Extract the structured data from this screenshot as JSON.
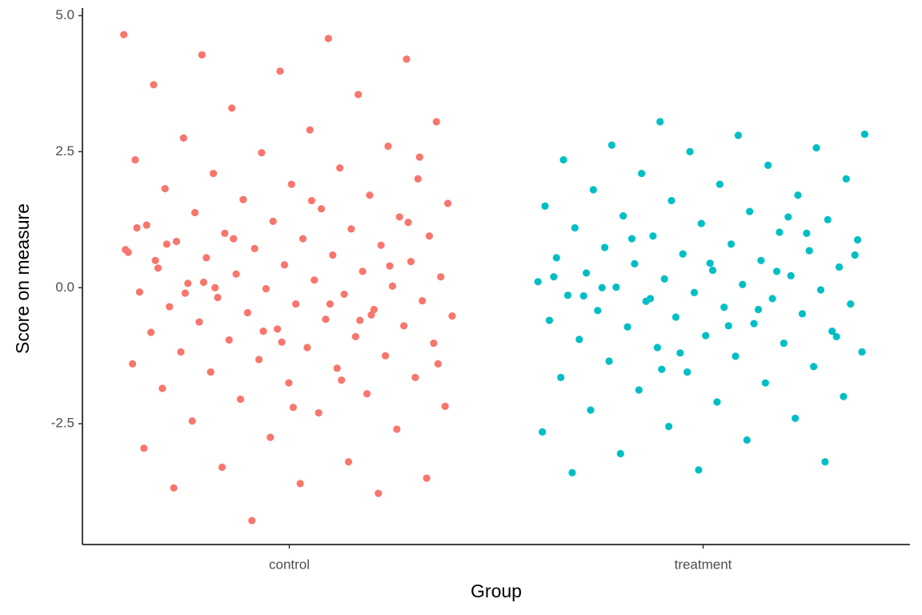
{
  "chart_data": {
    "type": "strip",
    "x_label": "Group",
    "y_label": "Score on measure",
    "categories": [
      "control",
      "treatment"
    ],
    "series": [
      {
        "color": "#f8766d",
        "values": [
          4.65,
          4.58,
          4.28,
          4.2,
          3.98,
          3.73,
          3.55,
          3.3,
          3.05,
          2.9,
          2.75,
          2.6,
          2.48,
          2.35,
          2.2,
          2.1,
          2.0,
          1.9,
          1.82,
          1.7,
          1.62,
          1.55,
          1.45,
          1.38,
          1.3,
          1.22,
          1.15,
          1.08,
          1.0,
          0.95,
          0.9,
          0.85,
          0.78,
          0.72,
          0.65,
          0.6,
          0.55,
          0.48,
          0.42,
          0.36,
          0.3,
          0.25,
          0.2,
          0.14,
          0.08,
          0.03,
          -0.02,
          -0.08,
          -0.12,
          -0.18,
          -0.24,
          -0.3,
          -0.35,
          -0.4,
          -0.46,
          -0.52,
          -0.58,
          -0.63,
          -0.7,
          -0.76,
          -0.82,
          -0.9,
          -0.96,
          -1.02,
          -1.1,
          -1.18,
          -1.25,
          -1.32,
          -1.4,
          -1.48,
          -1.55,
          -1.65,
          -1.75,
          -1.85,
          -1.95,
          -2.05,
          -2.18,
          -2.3,
          -2.45,
          -2.6,
          -2.75,
          -2.95,
          -3.2,
          -3.3,
          -3.5,
          -3.6,
          -3.68,
          -3.78,
          -4.28,
          0.7,
          -0.3,
          0.1,
          1.2,
          -1.0,
          0.5,
          -0.6,
          0.9,
          -1.4,
          1.6,
          -0.1,
          0.4,
          -0.8,
          1.1,
          -1.7,
          0.0,
          2.4,
          -2.2,
          0.8,
          -0.5
        ]
      },
      {
        "color": "#00bfc4",
        "values": [
          3.05,
          2.82,
          2.8,
          2.62,
          2.57,
          2.5,
          2.35,
          2.25,
          2.1,
          2.0,
          1.9,
          1.8,
          1.7,
          1.6,
          1.5,
          1.4,
          1.32,
          1.25,
          1.18,
          1.1,
          1.02,
          0.95,
          0.88,
          0.8,
          0.74,
          0.68,
          0.62,
          0.55,
          0.5,
          0.44,
          0.38,
          0.32,
          0.27,
          0.22,
          0.16,
          0.11,
          0.06,
          0.01,
          -0.04,
          -0.09,
          -0.14,
          -0.2,
          -0.25,
          -0.3,
          -0.36,
          -0.42,
          -0.48,
          -0.54,
          -0.6,
          -0.66,
          -0.72,
          -0.8,
          -0.88,
          -0.95,
          -1.02,
          -1.1,
          -1.18,
          -1.26,
          -1.35,
          -1.45,
          -1.55,
          -1.65,
          -1.75,
          -1.88,
          -2.0,
          -2.1,
          -2.25,
          -2.4,
          -2.55,
          -2.65,
          -2.8,
          -3.05,
          -3.2,
          -3.35,
          -3.4,
          0.3,
          -0.2,
          0.6,
          -0.7,
          0.0,
          1.0,
          -1.2,
          0.2,
          -0.4,
          0.9,
          -0.9,
          0.45,
          -0.15,
          1.3,
          -1.5
        ]
      }
    ],
    "ylim": [
      -4.72,
      5.14
    ],
    "yticks": [
      -2.5,
      {
        "value": 0,
        "label": "0.0"
      },
      2.5,
      {
        "value": 5,
        "label": "5.0"
      }
    ],
    "grid": false
  }
}
